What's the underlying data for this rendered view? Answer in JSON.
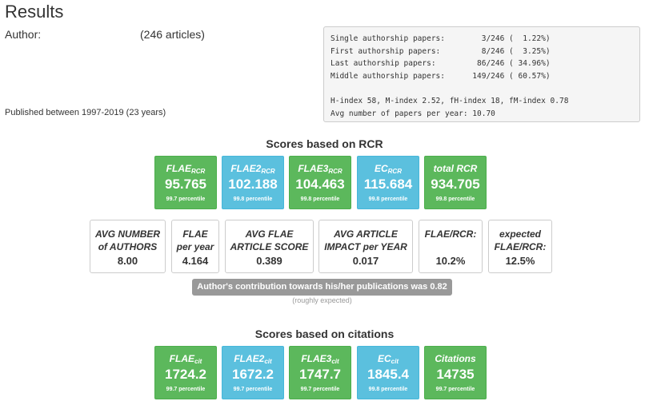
{
  "header": {
    "title": "Results",
    "author_label": "Author:",
    "articles": "(246 articles)",
    "published": "Published between 1997-2019 (23 years)"
  },
  "stats_box": {
    "lines": [
      "Single authorship papers:        3/246 (  1.22%)",
      "First authorship papers:         8/246 (  3.25%)",
      "Last authorship papers:         86/246 ( 34.96%)",
      "Middle authorship papers:      149/246 ( 60.57%)",
      "",
      "H-index 58, M-index 2.52, fH-index 18, fM-index 0.78",
      "Avg number of papers per year: 10.70"
    ]
  },
  "rcr": {
    "title": "Scores based on RCR",
    "tiles": [
      {
        "label": "FLAE",
        "sub": "RCR",
        "value": "95.765",
        "percentile": "99.7 percentile",
        "color": "green"
      },
      {
        "label": "FLAE2",
        "sub": "RCR",
        "value": "102.188",
        "percentile": "99.8 percentile",
        "color": "blue"
      },
      {
        "label": "FLAE3",
        "sub": "RCR",
        "value": "104.463",
        "percentile": "99.8 percentile",
        "color": "green"
      },
      {
        "label": "EC",
        "sub": "RCR",
        "value": "115.684",
        "percentile": "99.8 percentile",
        "color": "blue"
      },
      {
        "label": "total RCR",
        "sub": "",
        "value": "934.705",
        "percentile": "99.8 percentile",
        "color": "green"
      }
    ],
    "boxes": [
      {
        "line1": "AVG NUMBER",
        "line2": "of AUTHORS",
        "value": "8.00"
      },
      {
        "line1": "FLAE",
        "line2": "per year",
        "value": "4.164"
      },
      {
        "line1": "AVG FLAE",
        "line2": "ARTICLE SCORE",
        "value": "0.389"
      },
      {
        "line1": "AVG ARTICLE",
        "line2": "IMPACT per YEAR",
        "value": "0.017"
      },
      {
        "line1": "FLAE/RCR:",
        "line2": "",
        "value": "10.2%"
      },
      {
        "line1": "expected",
        "line2": "FLAE/RCR:",
        "value": "12.5%"
      }
    ],
    "contribution": "Author's contribution towards his/her publications was 0.82",
    "contribution_note": "(roughly expected)"
  },
  "citations": {
    "title": "Scores based on citations",
    "tiles": [
      {
        "label": "FLAE",
        "sub": "cit",
        "value": "1724.2",
        "percentile": "99.7 percentile",
        "color": "green"
      },
      {
        "label": "FLAE2",
        "sub": "cit",
        "value": "1672.2",
        "percentile": "99.7 percentile",
        "color": "blue"
      },
      {
        "label": "FLAE3",
        "sub": "cit",
        "value": "1747.7",
        "percentile": "99.7 percentile",
        "color": "green"
      },
      {
        "label": "EC",
        "sub": "cit",
        "value": "1845.4",
        "percentile": "99.8 percentile",
        "color": "blue"
      },
      {
        "label": "Citations",
        "sub": "",
        "value": "14735",
        "percentile": "99.7 percentile",
        "color": "green"
      }
    ]
  },
  "colors": {
    "green": "#5cb85c",
    "blue": "#5bc0de",
    "badge_gray": "#999999"
  }
}
